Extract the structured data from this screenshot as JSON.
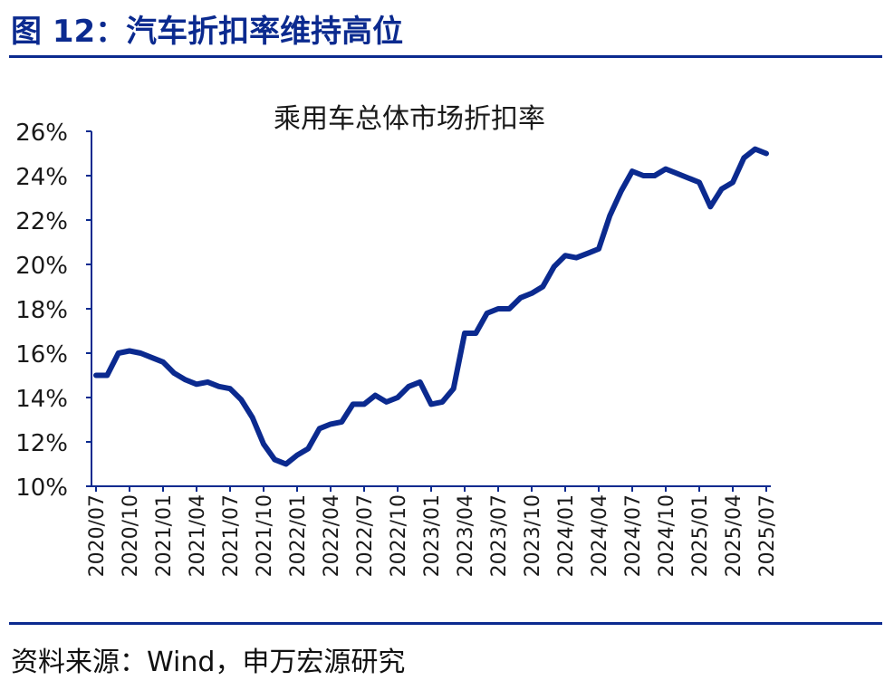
{
  "figure": {
    "title": "图 12：汽车折扣率维持高位",
    "source": "资料来源：Wind，申万宏源研究"
  },
  "colors": {
    "accent": "#0b2a8f",
    "series": "#0b2a8f",
    "axis": "#0b2a8f",
    "text": "#1a1a1a"
  },
  "chart_data": {
    "type": "line",
    "title": "乘用车总体市场折扣率",
    "xlabel": "",
    "ylabel": "",
    "ylim": [
      10,
      26
    ],
    "ytick_values": [
      10,
      12,
      14,
      16,
      18,
      20,
      22,
      24,
      26
    ],
    "ytick_labels": [
      "10%",
      "12%",
      "14%",
      "16%",
      "18%",
      "20%",
      "22%",
      "24%",
      "26%"
    ],
    "xtick_indices": [
      0,
      3,
      6,
      9,
      12,
      15,
      18,
      21,
      24,
      27,
      30,
      33,
      36,
      39,
      42,
      45,
      48,
      51,
      54,
      57,
      60
    ],
    "xtick_labels": [
      "2020/07",
      "2020/10",
      "2021/01",
      "2021/04",
      "2021/07",
      "2021/10",
      "2022/01",
      "2022/04",
      "2022/07",
      "2022/10",
      "2023/01",
      "2023/04",
      "2023/07",
      "2023/10",
      "2024/01",
      "2024/04",
      "2024/07",
      "2024/10",
      "2025/01",
      "2025/04",
      "2025/07"
    ],
    "grid": false,
    "legend": "none",
    "x": [
      "2020/07",
      "2020/08",
      "2020/09",
      "2020/10",
      "2020/11",
      "2020/12",
      "2021/01",
      "2021/02",
      "2021/03",
      "2021/04",
      "2021/05",
      "2021/06",
      "2021/07",
      "2021/08",
      "2021/09",
      "2021/10",
      "2021/11",
      "2021/12",
      "2022/01",
      "2022/02",
      "2022/03",
      "2022/04",
      "2022/05",
      "2022/06",
      "2022/07",
      "2022/08",
      "2022/09",
      "2022/10",
      "2022/11",
      "2022/12",
      "2023/01",
      "2023/02",
      "2023/03",
      "2023/04",
      "2023/05",
      "2023/06",
      "2023/07",
      "2023/08",
      "2023/09",
      "2023/10",
      "2023/11",
      "2023/12",
      "2024/01",
      "2024/02",
      "2024/03",
      "2024/04",
      "2024/05",
      "2024/06",
      "2024/07",
      "2024/08",
      "2024/09",
      "2024/10",
      "2024/11",
      "2024/12",
      "2025/01",
      "2025/02",
      "2025/03",
      "2025/04",
      "2025/05",
      "2025/06",
      "2025/07"
    ],
    "series": [
      {
        "values": [
          15.0,
          15.0,
          16.0,
          16.1,
          16.0,
          15.8,
          15.6,
          15.1,
          14.8,
          14.6,
          14.7,
          14.5,
          14.4,
          13.9,
          13.1,
          11.9,
          11.2,
          11.0,
          11.4,
          11.7,
          12.6,
          12.8,
          12.9,
          13.7,
          13.7,
          14.1,
          13.8,
          14.0,
          14.5,
          14.7,
          13.7,
          13.8,
          14.4,
          16.9,
          16.9,
          17.8,
          18.0,
          18.0,
          18.5,
          18.7,
          19.0,
          19.9,
          20.4,
          20.3,
          20.5,
          20.7,
          22.2,
          23.3,
          24.2,
          24.0,
          24.0,
          24.3,
          24.1,
          23.9,
          23.7,
          22.6,
          23.4,
          23.7,
          24.8,
          25.2,
          25.0
        ]
      }
    ]
  }
}
